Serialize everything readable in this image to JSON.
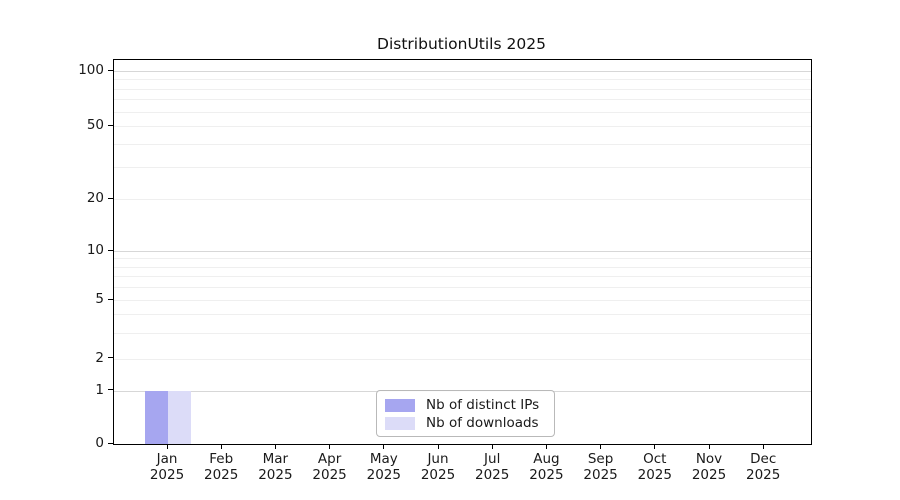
{
  "title": "DistributionUtils 2025",
  "chart_data": {
    "type": "bar",
    "title": "DistributionUtils 2025",
    "categories": [
      "Jan 2025",
      "Feb 2025",
      "Mar 2025",
      "Apr 2025",
      "May 2025",
      "Jun 2025",
      "Jul 2025",
      "Aug 2025",
      "Sep 2025",
      "Oct 2025",
      "Nov 2025",
      "Dec 2025"
    ],
    "series": [
      {
        "name": "Nb of distinct IPs",
        "color": "#a6a6f0",
        "values": [
          1,
          0,
          0,
          0,
          0,
          0,
          0,
          0,
          0,
          0,
          0,
          0
        ]
      },
      {
        "name": "Nb of downloads",
        "color": "#dcdcf8",
        "values": [
          1,
          0,
          0,
          0,
          0,
          0,
          0,
          0,
          0,
          0,
          0,
          0
        ]
      }
    ],
    "xlabel": "",
    "ylabel": "",
    "yscale": "symlog",
    "ylim": [
      0,
      130
    ],
    "yticks_labeled": [
      0,
      1,
      2,
      5,
      10,
      20,
      50,
      100
    ],
    "ygrid_major": [
      1,
      10,
      100
    ],
    "ygrid_minor": [
      2,
      3,
      4,
      5,
      6,
      7,
      8,
      9,
      20,
      30,
      40,
      50,
      60,
      70,
      80,
      90
    ],
    "grid": "horizontal",
    "legend_position": "bottom-center",
    "axis_color": "#000000",
    "gridline_major_color": "#d7d7d7",
    "gridline_minor_color": "#efefef"
  },
  "legend": {
    "items": [
      {
        "label": "Nb of distinct IPs",
        "color": "#a6a6f0"
      },
      {
        "label": "Nb of downloads",
        "color": "#dcdcf8"
      }
    ]
  }
}
